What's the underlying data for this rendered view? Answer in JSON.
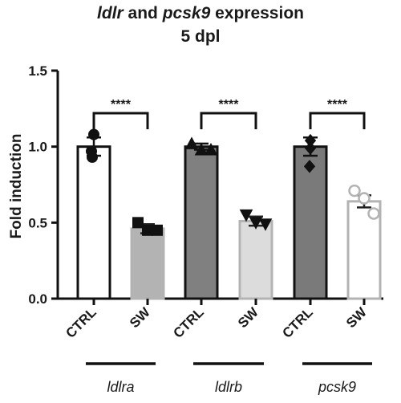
{
  "chart_data": {
    "type": "bar",
    "title_parts": [
      {
        "text": "ldlr",
        "italic": true
      },
      {
        "text": " and ",
        "italic": false
      },
      {
        "text": "pcsk9",
        "italic": true
      },
      {
        "text": " expression",
        "italic": false
      }
    ],
    "subtitle": "5 dpl",
    "ylabel": "Fold induction",
    "ylim": [
      0,
      1.5
    ],
    "yticks": [
      "0.0",
      "0.5",
      "1.0",
      "1.5"
    ],
    "categories": [
      "CTRL",
      "SW",
      "CTRL",
      "SW",
      "CTRL",
      "SW"
    ],
    "groups": [
      "ldlra",
      "ldlrb",
      "pcsk9"
    ],
    "bars": [
      {
        "group": "ldlra",
        "condition": "CTRL",
        "value": 1.0,
        "error": 0.06,
        "fill": "#ffffff",
        "stroke": "#111111",
        "marker": "circle",
        "marker_fill": "#111111",
        "points": [
          1.08,
          0.97,
          0.93
        ]
      },
      {
        "group": "ldlra",
        "condition": "SW",
        "value": 0.46,
        "error": 0.03,
        "fill": "#b3b3b3",
        "stroke": "#b3b3b3",
        "marker": "square",
        "marker_fill": "#111111",
        "points": [
          0.5,
          0.45,
          0.45
        ]
      },
      {
        "group": "ldlrb",
        "condition": "CTRL",
        "value": 1.0,
        "error": 0.02,
        "fill": "#808080",
        "stroke": "#111111",
        "marker": "triangle",
        "marker_fill": "#111111",
        "points": [
          1.02,
          0.98,
          0.98
        ]
      },
      {
        "group": "ldlrb",
        "condition": "SW",
        "value": 0.51,
        "error": 0.03,
        "fill": "#dcdcdc",
        "stroke": "#b3b3b3",
        "marker": "tri-down",
        "marker_fill": "#111111",
        "points": [
          0.55,
          0.5,
          0.49
        ]
      },
      {
        "group": "pcsk9",
        "condition": "CTRL",
        "value": 1.0,
        "error": 0.06,
        "fill": "#7a7a7a",
        "stroke": "#111111",
        "marker": "diamond",
        "marker_fill": "#111111",
        "points": [
          1.04,
          0.99,
          0.87
        ]
      },
      {
        "group": "pcsk9",
        "condition": "SW",
        "value": 0.64,
        "error": 0.04,
        "fill": "#ffffff",
        "stroke": "#b3b3b3",
        "marker": "open-circle",
        "marker_fill": "#ffffff",
        "points": [
          0.71,
          0.66,
          0.56
        ]
      }
    ],
    "significance": [
      {
        "group": "ldlra",
        "label": "****"
      },
      {
        "group": "ldlrb",
        "label": "****"
      },
      {
        "group": "pcsk9",
        "label": "****"
      }
    ],
    "grid": false,
    "legend": "none"
  }
}
